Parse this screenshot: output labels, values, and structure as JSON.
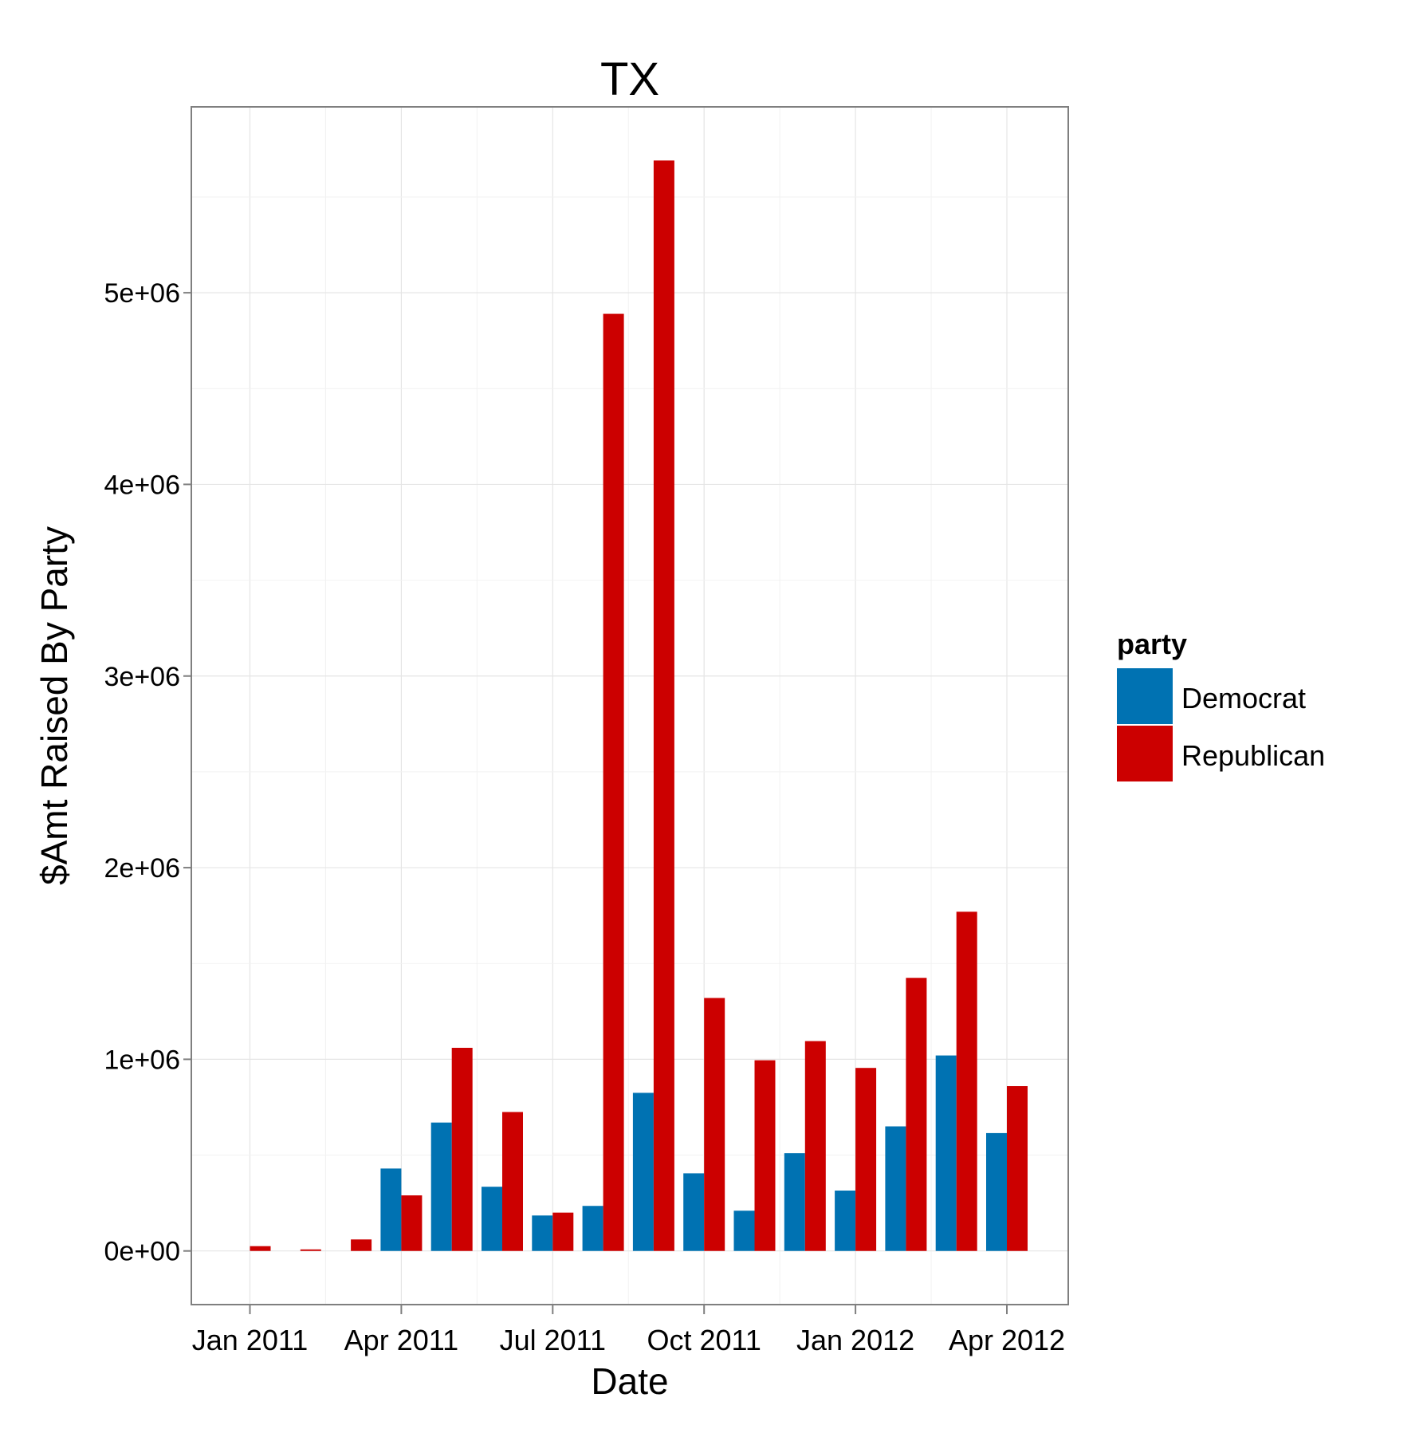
{
  "chart_data": {
    "type": "bar",
    "title": "TX",
    "xlabel": "Date",
    "ylabel": "$Amt Raised By Party",
    "x_tick_labels": [
      "Jan 2011",
      "Apr 2011",
      "Jul 2011",
      "Oct 2011",
      "Jan 2012",
      "Apr 2012"
    ],
    "y_tick_labels": [
      "0e+00",
      "1e+06",
      "2e+06",
      "3e+06",
      "4e+06",
      "5e+06"
    ],
    "y_ticks": [
      0,
      1000000,
      2000000,
      3000000,
      4000000,
      5000000
    ],
    "ylim": [
      -280000,
      5970000
    ],
    "categories": [
      "Jan 2011",
      "Feb 2011",
      "Mar 2011",
      "Apr 2011",
      "May 2011",
      "Jun 2011",
      "Jul 2011",
      "Aug 2011",
      "Sep 2011",
      "Oct 2011",
      "Nov 2011",
      "Dec 2011",
      "Jan 2012",
      "Feb 2012",
      "Mar 2012",
      "Apr 2012"
    ],
    "legend": {
      "title": "party",
      "position": "right"
    },
    "grid": true,
    "series": [
      {
        "name": "Democrat",
        "color": "#0072B2",
        "values": [
          null,
          null,
          null,
          430000,
          670000,
          335000,
          185000,
          235000,
          825000,
          405000,
          210000,
          510000,
          315000,
          650000,
          1020000,
          615000
        ]
      },
      {
        "name": "Republican",
        "color": "#CC0000",
        "values": [
          25000,
          8000,
          60000,
          290000,
          1060000,
          725000,
          200000,
          4890000,
          5690000,
          1320000,
          995000,
          1095000,
          955000,
          1425000,
          1770000,
          860000
        ]
      }
    ]
  }
}
